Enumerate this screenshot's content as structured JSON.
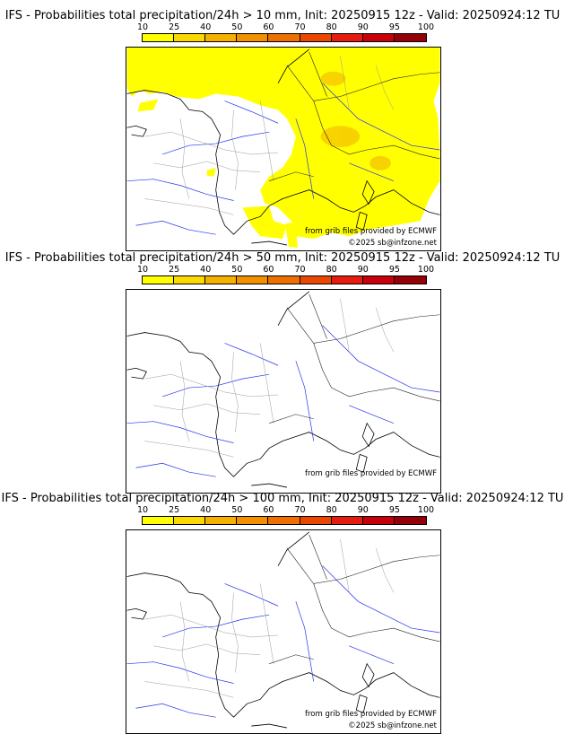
{
  "colorbar": {
    "tick_labels": [
      "10",
      "25",
      "40",
      "50",
      "60",
      "70",
      "80",
      "90",
      "95",
      "100"
    ],
    "colors": [
      "#ffff00",
      "#fbd800",
      "#f6b000",
      "#f29000",
      "#ee7000",
      "#ea4800",
      "#e51c0e",
      "#c8000a",
      "#960008",
      "#640004"
    ]
  },
  "credits": {
    "source": "from grib files provided by ECMWF",
    "copyright": "©2025 sb@infzone.net"
  },
  "panels": [
    {
      "title": "IFS - Probabilities total precipitation/24h > 10 mm, Init: 20250915 12z - Valid: 20250924:12 TU",
      "threshold_mm": 10,
      "show_copyright": true
    },
    {
      "title": "IFS - Probabilities total precipitation/24h > 50 mm, Init: 20250915 12z - Valid: 20250924:12 TU",
      "threshold_mm": 50,
      "show_copyright": false
    },
    {
      "title": "IFS - Probabilities total precipitation/24h > 100 mm, Init: 20250915 12z - Valid: 20250924:12 TU",
      "threshold_mm": 100,
      "show_copyright": true
    }
  ]
}
